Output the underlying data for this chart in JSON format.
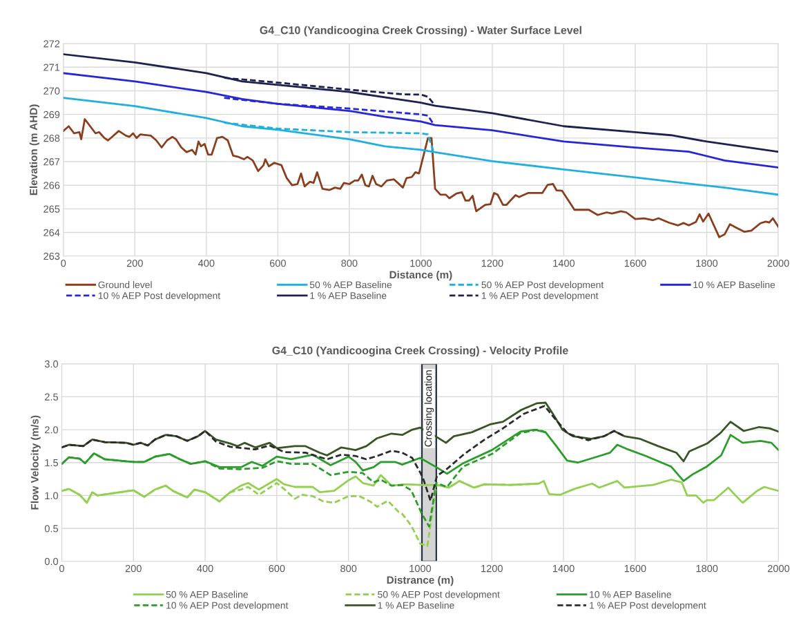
{
  "chart_data": [
    {
      "type": "line",
      "title": "G4_C10 (Yandicoogina Creek Crossing) - Water Surface Level",
      "xlabel": "Distance (m)",
      "ylabel": "Elevation (m AHD)",
      "xlim": [
        0,
        2000
      ],
      "xticks": [
        0,
        200,
        400,
        600,
        800,
        1000,
        1200,
        1400,
        1600,
        1800,
        2000
      ],
      "ylim": [
        263,
        272
      ],
      "yticks": [
        263,
        264,
        265,
        266,
        267,
        268,
        269,
        270,
        271,
        272
      ],
      "grid": true,
      "legend": "bottom",
      "series": [
        {
          "name": "Ground level",
          "color": "#8b3e1e",
          "line_style": "solid",
          "x": [
            0,
            15,
            30,
            45,
            50,
            60,
            75,
            90,
            100,
            115,
            125,
            140,
            155,
            175,
            185,
            195,
            205,
            215,
            245,
            260,
            275,
            290,
            305,
            315,
            330,
            345,
            360,
            370,
            378,
            385,
            395,
            405,
            415,
            430,
            445,
            460,
            475,
            490,
            505,
            515,
            530,
            545,
            560,
            565,
            575,
            590,
            610,
            625,
            640,
            655,
            665,
            675,
            690,
            700,
            710,
            725,
            745,
            760,
            775,
            785,
            800,
            815,
            825,
            835,
            845,
            855,
            865,
            875,
            890,
            905,
            925,
            950,
            960,
            975,
            985,
            995,
            1010,
            1020,
            1030,
            1040,
            1055,
            1070,
            1080,
            1100,
            1115,
            1125,
            1135,
            1145,
            1155,
            1180,
            1195,
            1205,
            1215,
            1230,
            1240,
            1265,
            1275,
            1300,
            1340,
            1355,
            1370,
            1380,
            1395,
            1430,
            1470,
            1495,
            1520,
            1535,
            1560,
            1575,
            1600,
            1625,
            1650,
            1665,
            1695,
            1720,
            1735,
            1750,
            1770,
            1780,
            1790,
            1805,
            1835,
            1850,
            1865,
            1880,
            1905,
            1925,
            1950,
            1965,
            1975,
            1985,
            2000
          ],
          "values": [
            268.3,
            268.5,
            268.2,
            268.25,
            267.95,
            268.8,
            268.5,
            268.2,
            268.25,
            268.0,
            267.9,
            268.1,
            268.3,
            268.1,
            268.05,
            268.2,
            268.0,
            268.15,
            268.1,
            267.9,
            267.6,
            267.9,
            268.05,
            267.95,
            267.6,
            267.4,
            267.5,
            267.3,
            267.85,
            267.65,
            267.75,
            267.3,
            267.3,
            268.0,
            268.05,
            267.9,
            267.25,
            267.2,
            267.1,
            267.2,
            267.05,
            266.6,
            266.85,
            267.1,
            266.8,
            266.95,
            266.85,
            266.3,
            266.0,
            266.05,
            266.5,
            265.95,
            266.15,
            266.1,
            266.55,
            265.85,
            265.8,
            265.9,
            265.85,
            266.1,
            266.05,
            266.2,
            266.2,
            266.45,
            266.0,
            265.95,
            266.4,
            266.05,
            265.95,
            266.2,
            266.25,
            265.9,
            266.3,
            266.35,
            266.55,
            266.5,
            267.4,
            268.0,
            268.0,
            265.85,
            265.6,
            265.6,
            265.45,
            265.65,
            265.7,
            265.35,
            265.35,
            265.55,
            264.9,
            265.17,
            265.2,
            265.67,
            265.6,
            265.17,
            265.17,
            265.58,
            265.5,
            265.67,
            265.67,
            266.02,
            266.05,
            265.78,
            265.77,
            264.96,
            264.96,
            264.74,
            264.85,
            264.8,
            264.9,
            264.85,
            264.57,
            264.6,
            264.52,
            264.6,
            264.41,
            264.3,
            264.4,
            264.3,
            264.45,
            264.77,
            264.46,
            264.8,
            263.8,
            263.92,
            264.35,
            264.22,
            264.03,
            264.08,
            264.39,
            264.46,
            264.42,
            264.6,
            264.25
          ]
        },
        {
          "name": "50 % AEP Baseline",
          "color": "#1fb0e0",
          "line_style": "solid",
          "x": [
            0,
            200,
            400,
            500,
            600,
            800,
            900,
            1000,
            1040,
            1200,
            1400,
            1600,
            1750,
            1850,
            2000
          ],
          "values": [
            269.7,
            269.35,
            268.85,
            268.5,
            268.35,
            267.95,
            267.65,
            267.5,
            267.4,
            267.02,
            266.67,
            266.33,
            266.07,
            265.9,
            265.6
          ]
        },
        {
          "name": "50 % AEP Post development",
          "color": "#1fb0e0",
          "line_style": "dashed",
          "x": [
            450,
            600,
            800,
            1000,
            1020,
            1035
          ],
          "values": [
            268.65,
            268.4,
            268.25,
            268.2,
            268.15,
            267.45
          ]
        },
        {
          "name": "10 % AEP Baseline",
          "color": "#2626d9",
          "line_style": "solid",
          "x": [
            0,
            200,
            400,
            500,
            600,
            800,
            900,
            1000,
            1040,
            1200,
            1400,
            1600,
            1750,
            1850,
            2000
          ],
          "values": [
            270.75,
            270.4,
            269.95,
            269.65,
            269.45,
            269.15,
            268.9,
            268.7,
            268.55,
            268.33,
            267.85,
            267.6,
            267.42,
            267.05,
            266.75
          ]
        },
        {
          "name": "10 % AEP Post development",
          "color": "#2626d9",
          "line_style": "dashed",
          "x": [
            450,
            600,
            800,
            1000,
            1020,
            1035
          ],
          "values": [
            269.7,
            269.45,
            269.25,
            269.0,
            268.95,
            268.6
          ]
        },
        {
          "name": "1 % AEP Baseline",
          "color": "#1b2150",
          "line_style": "solid",
          "x": [
            0,
            200,
            400,
            500,
            600,
            800,
            1000,
            1040,
            1200,
            1400,
            1600,
            1700,
            1800,
            2000
          ],
          "values": [
            271.55,
            271.2,
            270.75,
            270.4,
            270.25,
            269.95,
            269.5,
            269.37,
            269.05,
            268.5,
            268.25,
            268.12,
            267.85,
            267.42
          ]
        },
        {
          "name": "1 % AEP Post development",
          "color": "#1b2150",
          "line_style": "dashed",
          "x": [
            450,
            600,
            800,
            950,
            1000,
            1020,
            1040
          ],
          "values": [
            270.55,
            270.35,
            270.05,
            269.85,
            269.84,
            269.75,
            269.38
          ]
        }
      ]
    },
    {
      "type": "line",
      "title": "G4_C10 (Yandicoogina Creek Crossing) - Velocity Profile",
      "xlabel": "Distrance (m)",
      "ylabel": "Flow Velocity (m/s)",
      "xlim": [
        0,
        2000
      ],
      "xticks": [
        0,
        200,
        400,
        600,
        800,
        1000,
        1200,
        1400,
        1600,
        1800,
        2000
      ],
      "ylim": [
        0,
        3
      ],
      "yticks": [
        {
          "value": 0,
          "label": "0.0"
        },
        {
          "value": 0.5,
          "label": "0.5"
        },
        {
          "value": 1,
          "label": "1.0"
        },
        {
          "value": 1.5,
          "label": "1.5"
        },
        {
          "value": 2,
          "label": "2.0"
        },
        {
          "value": 2.5,
          "label": "2.5"
        },
        {
          "value": 3,
          "label": "3.0"
        }
      ],
      "grid": true,
      "legend": "bottom",
      "bands": [
        {
          "axis": "x",
          "from": 1005,
          "to": 1045,
          "label": "Crossing location",
          "color": "#d4d4d4"
        }
      ],
      "series": [
        {
          "name": "50 % AEP Baseline",
          "color": "#92d050",
          "line_style": "solid",
          "x": [
            0,
            20,
            50,
            70,
            85,
            100,
            200,
            230,
            260,
            290,
            310,
            350,
            370,
            400,
            440,
            470,
            500,
            520,
            550,
            600,
            620,
            650,
            700,
            720,
            760,
            800,
            820,
            840,
            870,
            890,
            920,
            960,
            1000,
            1050,
            1080,
            1110,
            1150,
            1180,
            1250,
            1330,
            1345,
            1360,
            1390,
            1430,
            1480,
            1500,
            1550,
            1570,
            1650,
            1700,
            1730,
            1745,
            1770,
            1790,
            1800,
            1820,
            1860,
            1880,
            1900,
            1940,
            1960,
            2000
          ],
          "values": [
            1.07,
            1.1,
            1.01,
            0.89,
            1.05,
            1.0,
            1.08,
            0.98,
            1.09,
            1.15,
            1.07,
            0.97,
            1.09,
            1.05,
            0.91,
            1.05,
            1.15,
            1.19,
            1.09,
            1.25,
            1.17,
            1.13,
            1.13,
            1.05,
            1.07,
            1.23,
            1.29,
            1.19,
            1.15,
            1.31,
            1.15,
            1.17,
            1.16,
            1.16,
            1.12,
            1.22,
            1.12,
            1.17,
            1.16,
            1.18,
            1.22,
            1.02,
            1.01,
            1.1,
            1.18,
            1.12,
            1.22,
            1.12,
            1.16,
            1.24,
            1.2,
            1.0,
            1.0,
            0.89,
            0.93,
            0.93,
            1.12,
            1.0,
            0.89,
            1.07,
            1.13,
            1.07
          ]
        },
        {
          "name": "50 % AEP Post development",
          "color": "#92d050",
          "line_style": "dashed",
          "x": [
            0,
            20,
            50,
            70,
            85,
            100,
            200,
            230,
            260,
            290,
            310,
            350,
            370,
            400,
            440,
            470,
            500,
            520,
            550,
            600,
            620,
            650,
            670,
            700,
            730,
            760,
            800,
            830,
            860,
            880,
            910,
            940,
            950,
            970,
            980,
            1000,
            1020,
            1045,
            1080,
            1110,
            1150,
            1180,
            1250,
            1330
          ],
          "values": [
            1.07,
            1.1,
            1.01,
            0.89,
            1.05,
            1.0,
            1.08,
            0.98,
            1.09,
            1.15,
            1.07,
            0.97,
            1.09,
            1.05,
            0.91,
            1.05,
            1.09,
            1.13,
            1.01,
            1.19,
            1.1,
            0.95,
            1.01,
            0.99,
            0.91,
            0.89,
            0.99,
            0.99,
            0.91,
            0.83,
            0.92,
            0.75,
            0.72,
            0.58,
            0.49,
            0.27,
            0.23,
            1.16,
            1.12,
            1.22,
            1.12,
            1.17,
            1.16,
            1.18
          ]
        },
        {
          "name": "10 % AEP Baseline",
          "color": "#2a9d2a",
          "line_style": "solid",
          "x": [
            0,
            20,
            50,
            65,
            90,
            120,
            200,
            230,
            260,
            300,
            330,
            360,
            400,
            440,
            500,
            530,
            560,
            600,
            640,
            700,
            750,
            800,
            820,
            840,
            870,
            890,
            930,
            950,
            1000,
            1045,
            1075,
            1120,
            1200,
            1280,
            1320,
            1350,
            1380,
            1410,
            1440,
            1500,
            1530,
            1550,
            1580,
            1630,
            1700,
            1735,
            1760,
            1800,
            1840,
            1866,
            1900,
            1950,
            1980,
            2000
          ],
          "values": [
            1.48,
            1.58,
            1.56,
            1.49,
            1.64,
            1.55,
            1.51,
            1.51,
            1.59,
            1.63,
            1.55,
            1.48,
            1.52,
            1.43,
            1.43,
            1.51,
            1.45,
            1.59,
            1.55,
            1.62,
            1.46,
            1.59,
            1.51,
            1.38,
            1.43,
            1.51,
            1.51,
            1.47,
            1.57,
            1.43,
            1.33,
            1.49,
            1.69,
            1.97,
            2.0,
            1.96,
            1.75,
            1.53,
            1.5,
            1.6,
            1.65,
            1.77,
            1.7,
            1.6,
            1.44,
            1.22,
            1.32,
            1.44,
            1.61,
            1.92,
            1.8,
            1.83,
            1.8,
            1.69
          ]
        },
        {
          "name": "10 % AEP Post development",
          "color": "#2a9d2a",
          "line_style": "dashed",
          "x": [
            0,
            20,
            50,
            65,
            90,
            120,
            200,
            230,
            260,
            300,
            330,
            360,
            400,
            440,
            500,
            560,
            600,
            640,
            700,
            750,
            800,
            840,
            870,
            890,
            920,
            950,
            975,
            1005,
            1025,
            1045,
            1075,
            1120,
            1200,
            1280,
            1330,
            1350
          ],
          "values": [
            1.48,
            1.58,
            1.56,
            1.49,
            1.64,
            1.55,
            1.51,
            1.51,
            1.59,
            1.63,
            1.55,
            1.48,
            1.52,
            1.41,
            1.4,
            1.42,
            1.52,
            1.48,
            1.48,
            1.31,
            1.36,
            1.34,
            1.2,
            1.24,
            1.15,
            1.16,
            1.08,
            0.72,
            0.53,
            1.19,
            1.13,
            1.44,
            1.63,
            1.95,
            2.0,
            1.96
          ]
        },
        {
          "name": "1 % AEP Baseline",
          "color": "#375623",
          "line_style": "solid",
          "x": [
            0,
            20,
            40,
            60,
            85,
            120,
            180,
            200,
            220,
            240,
            260,
            290,
            320,
            350,
            380,
            400,
            430,
            470,
            490,
            510,
            540,
            580,
            600,
            650,
            680,
            720,
            740,
            780,
            820,
            850,
            880,
            920,
            950,
            978,
            1000,
            1043,
            1072,
            1094,
            1144,
            1195,
            1231,
            1282,
            1325,
            1350,
            1368,
            1397,
            1426,
            1477,
            1513,
            1541,
            1570,
            1614,
            1664,
            1715,
            1735,
            1751,
            1801,
            1838,
            1866,
            1903,
            1946,
            1975,
            2000
          ],
          "values": [
            1.73,
            1.77,
            1.76,
            1.75,
            1.85,
            1.81,
            1.8,
            1.77,
            1.8,
            1.76,
            1.85,
            1.92,
            1.9,
            1.83,
            1.9,
            1.98,
            1.85,
            1.79,
            1.75,
            1.8,
            1.73,
            1.8,
            1.72,
            1.75,
            1.75,
            1.65,
            1.61,
            1.73,
            1.69,
            1.75,
            1.87,
            1.94,
            1.92,
            2.0,
            2.03,
            1.9,
            1.8,
            1.9,
            1.96,
            2.08,
            2.12,
            2.3,
            2.4,
            2.41,
            2.26,
            2.0,
            1.9,
            1.86,
            1.9,
            1.98,
            1.9,
            1.86,
            1.75,
            1.65,
            1.52,
            1.67,
            1.79,
            1.95,
            2.12,
            1.98,
            2.04,
            2.02,
            1.97
          ]
        },
        {
          "name": "1 % AEP Post development",
          "color": "#2b2b2b",
          "line_style": "dashed",
          "x": [
            0,
            20,
            40,
            60,
            85,
            120,
            180,
            200,
            220,
            240,
            260,
            290,
            320,
            350,
            380,
            400,
            430,
            470,
            540,
            580,
            620,
            680,
            740,
            780,
            820,
            850,
            880,
            920,
            950,
            978,
            1007,
            1029,
            1047,
            1072,
            1123,
            1180,
            1231,
            1289,
            1347,
            1368,
            1412,
            1469,
            1513,
            1541,
            1570
          ],
          "values": [
            1.73,
            1.77,
            1.76,
            1.75,
            1.85,
            1.81,
            1.8,
            1.77,
            1.8,
            1.76,
            1.85,
            1.92,
            1.9,
            1.83,
            1.9,
            1.98,
            1.82,
            1.74,
            1.7,
            1.76,
            1.66,
            1.65,
            1.55,
            1.62,
            1.6,
            1.55,
            1.6,
            1.68,
            1.65,
            1.57,
            1.28,
            0.92,
            1.3,
            1.39,
            1.63,
            1.85,
            2.02,
            2.24,
            2.36,
            2.22,
            1.94,
            1.84,
            1.9,
            1.98,
            1.9
          ]
        }
      ]
    }
  ]
}
